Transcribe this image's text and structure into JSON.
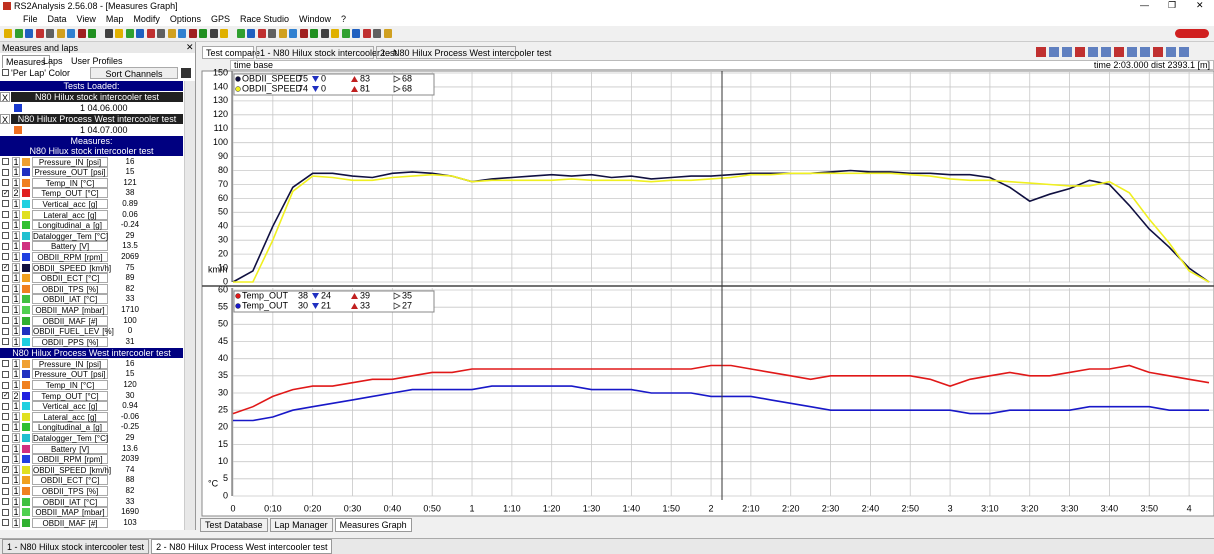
{
  "window": {
    "title": "RS2Analysis 2.56.08 - [Measures Graph]"
  },
  "menu": [
    "File",
    "Data",
    "View",
    "Map",
    "Modify",
    "Options",
    "GPS",
    "Race Studio",
    "Window",
    "?"
  ],
  "left_panel": {
    "title": "Measures and laps",
    "tabs": [
      "Measures",
      "Laps",
      "User Profiles"
    ],
    "per_lap_color": "'Per Lap' Color",
    "sort_button": "Sort Channels",
    "tests_loaded": "Tests Loaded:",
    "tests": [
      {
        "close": "X",
        "name": "N80 Hilux stock intercooler test",
        "color": "#1a3ad0",
        "lap": "1 04.06.000"
      },
      {
        "close": "X",
        "name": "N80 Hilux Process West intercooler test",
        "color": "#f07020",
        "lap": "1 04.07.000"
      }
    ],
    "measures_header": "Measures:",
    "groups": [
      {
        "name": "N80 Hilux stock intercooler test",
        "channels": [
          {
            "lap": 1,
            "checked": false,
            "color": "#f0a030",
            "name": "Pressure_IN",
            "unit": "[psi]",
            "value": 16
          },
          {
            "lap": 1,
            "checked": false,
            "color": "#2030c0",
            "name": "Pressure_OUT",
            "unit": "[psi]",
            "value": 15
          },
          {
            "lap": 1,
            "checked": false,
            "color": "#f08020",
            "name": "Temp_IN",
            "unit": "[°C]",
            "value": 121
          },
          {
            "lap": 2,
            "checked": true,
            "color": "#e02020",
            "name": "Temp_OUT",
            "unit": "[°C]",
            "value": 38
          },
          {
            "lap": 1,
            "checked": false,
            "color": "#20d0e0",
            "name": "Vertical_acc",
            "unit": "[g]",
            "value": 0.89
          },
          {
            "lap": 1,
            "checked": false,
            "color": "#e0e020",
            "name": "Lateral_acc",
            "unit": "[g]",
            "value": 0.06
          },
          {
            "lap": 1,
            "checked": false,
            "color": "#30c030",
            "name": "Longitudinal_a",
            "unit": "[g]",
            "value": -0.24
          },
          {
            "lap": 1,
            "checked": false,
            "color": "#20c0d0",
            "name": "Datalogger_Tem",
            "unit": "[°C]",
            "value": 29
          },
          {
            "lap": 1,
            "checked": false,
            "color": "#d03080",
            "name": "Battery",
            "unit": "[V]",
            "value": 13.5
          },
          {
            "lap": 1,
            "checked": false,
            "color": "#2040e0",
            "name": "OBDII_RPM",
            "unit": "[rpm]",
            "value": 2069
          },
          {
            "lap": 1,
            "checked": true,
            "color": "#101040",
            "name": "OBDII_SPEED",
            "unit": "[km/h]",
            "value": 75
          },
          {
            "lap": 1,
            "checked": false,
            "color": "#f0a020",
            "name": "OBDII_ECT",
            "unit": "[°C]",
            "value": 89
          },
          {
            "lap": 1,
            "checked": false,
            "color": "#f08020",
            "name": "OBDII_TPS",
            "unit": "[%]",
            "value": 82
          },
          {
            "lap": 1,
            "checked": false,
            "color": "#40c040",
            "name": "OBDII_IAT",
            "unit": "[°C]",
            "value": 33
          },
          {
            "lap": 1,
            "checked": false,
            "color": "#50d050",
            "name": "OBDII_MAP",
            "unit": "[mbar]",
            "value": 1710
          },
          {
            "lap": 1,
            "checked": false,
            "color": "#30b030",
            "name": "OBDII_MAF",
            "unit": "[#]",
            "value": 100
          },
          {
            "lap": 1,
            "checked": false,
            "color": "#2030c0",
            "name": "OBDII_FUEL_LEV",
            "unit": "[%]",
            "value": 0
          },
          {
            "lap": 1,
            "checked": false,
            "color": "#20d0e0",
            "name": "OBDII_PPS",
            "unit": "[%]",
            "value": 31
          }
        ]
      },
      {
        "name": "N80 Hilux Process West intercooler test",
        "channels": [
          {
            "lap": 1,
            "checked": false,
            "color": "#f0a030",
            "name": "Pressure_IN",
            "unit": "[psi]",
            "value": 16
          },
          {
            "lap": 1,
            "checked": false,
            "color": "#2030c0",
            "name": "Pressure_OUT",
            "unit": "[psi]",
            "value": 15
          },
          {
            "lap": 1,
            "checked": false,
            "color": "#f08020",
            "name": "Temp_IN",
            "unit": "[°C]",
            "value": 120
          },
          {
            "lap": 2,
            "checked": true,
            "color": "#2020e0",
            "name": "Temp_OUT",
            "unit": "[°C]",
            "value": 30
          },
          {
            "lap": 1,
            "checked": false,
            "color": "#20d0e0",
            "name": "Vertical_acc",
            "unit": "[g]",
            "value": 0.94
          },
          {
            "lap": 1,
            "checked": false,
            "color": "#e0e020",
            "name": "Lateral_acc",
            "unit": "[g]",
            "value": -0.06
          },
          {
            "lap": 1,
            "checked": false,
            "color": "#30c030",
            "name": "Longitudinal_a",
            "unit": "[g]",
            "value": -0.25
          },
          {
            "lap": 1,
            "checked": false,
            "color": "#20c0d0",
            "name": "Datalogger_Tem",
            "unit": "[°C]",
            "value": 29
          },
          {
            "lap": 1,
            "checked": false,
            "color": "#d03080",
            "name": "Battery",
            "unit": "[V]",
            "value": 13.6
          },
          {
            "lap": 1,
            "checked": false,
            "color": "#2040e0",
            "name": "OBDII_RPM",
            "unit": "[rpm]",
            "value": 2039
          },
          {
            "lap": 1,
            "checked": true,
            "color": "#e0e020",
            "name": "OBDII_SPEED",
            "unit": "[km/h]",
            "value": 74
          },
          {
            "lap": 1,
            "checked": false,
            "color": "#f0a020",
            "name": "OBDII_ECT",
            "unit": "[°C]",
            "value": 88
          },
          {
            "lap": 1,
            "checked": false,
            "color": "#f08020",
            "name": "OBDII_TPS",
            "unit": "[%]",
            "value": 82
          },
          {
            "lap": 1,
            "checked": false,
            "color": "#40c040",
            "name": "OBDII_IAT",
            "unit": "[°C]",
            "value": 33
          },
          {
            "lap": 1,
            "checked": false,
            "color": "#50d050",
            "name": "OBDII_MAP",
            "unit": "[mbar]",
            "value": 1690
          },
          {
            "lap": 1,
            "checked": false,
            "color": "#30b030",
            "name": "OBDII_MAF",
            "unit": "[#]",
            "value": 103
          }
        ]
      }
    ]
  },
  "doc_tabs": [
    "Test compare",
    "1 - N80 Hilux stock intercooler test",
    "2 - N80 Hilux Process West intercooler test"
  ],
  "time_base": "time base",
  "cursor_readout": "time 2:03.000   dist 2393.1 [m]",
  "chart_data": [
    {
      "type": "line",
      "y_label": "km/h",
      "grid": true,
      "x": [
        0,
        5,
        10,
        15,
        20,
        25,
        30,
        35,
        40,
        45,
        50,
        55,
        60,
        65,
        70,
        75,
        80,
        85,
        90,
        95,
        100,
        105,
        110,
        115,
        120,
        125,
        130,
        135,
        140,
        145,
        150,
        155,
        160,
        165,
        170,
        175,
        180,
        185,
        190,
        195,
        200,
        205,
        210,
        215,
        220,
        225,
        230,
        235,
        240,
        245
      ],
      "xlim": [
        0,
        246
      ],
      "xticks": [
        0,
        10,
        20,
        30,
        40,
        50,
        60,
        70,
        80,
        90,
        100,
        110,
        120,
        130,
        140,
        150,
        160,
        170,
        180,
        190,
        200,
        210,
        220,
        230,
        240
      ],
      "ylim": [
        0,
        150
      ],
      "yticks": [
        0,
        10,
        20,
        30,
        40,
        50,
        60,
        70,
        80,
        90,
        100,
        110,
        120,
        130,
        140,
        150
      ],
      "series": [
        {
          "name": "OBDII_SPEED",
          "color": "#101040",
          "current": 75,
          "min": 0,
          "max": 83,
          "avg": 68,
          "values": [
            0,
            8,
            40,
            68,
            78,
            78,
            76,
            75,
            78,
            79,
            78,
            76,
            72,
            74,
            75,
            76,
            77,
            76,
            77,
            75,
            76,
            74,
            75,
            76,
            76,
            77,
            78,
            78,
            78,
            78,
            79,
            80,
            79,
            79,
            78,
            78,
            77,
            77,
            75,
            68,
            58,
            63,
            67,
            73,
            70,
            55,
            38,
            25,
            10,
            0
          ]
        },
        {
          "name": "OBDII_SPEED",
          "color": "#f0f020",
          "current": 74,
          "min": 0,
          "max": 81,
          "avg": 68,
          "values": [
            0,
            0,
            30,
            65,
            76,
            75,
            73,
            73,
            75,
            76,
            77,
            76,
            72,
            73,
            73,
            73,
            73,
            74,
            73,
            73,
            73,
            72,
            73,
            73,
            74,
            75,
            77,
            77,
            78,
            78,
            78,
            78,
            78,
            78,
            77,
            76,
            74,
            73,
            73,
            72,
            71,
            70,
            69,
            69,
            72,
            64,
            45,
            28,
            8,
            0
          ]
        }
      ]
    },
    {
      "type": "line",
      "y_label": "°C",
      "grid": true,
      "x": [
        0,
        5,
        10,
        15,
        20,
        25,
        30,
        35,
        40,
        45,
        50,
        55,
        60,
        65,
        70,
        75,
        80,
        85,
        90,
        95,
        100,
        105,
        110,
        115,
        120,
        125,
        130,
        135,
        140,
        145,
        150,
        155,
        160,
        165,
        170,
        175,
        180,
        185,
        190,
        195,
        200,
        205,
        210,
        215,
        220,
        225,
        230,
        235,
        240,
        245
      ],
      "xlim": [
        0,
        246
      ],
      "xticks": [
        0,
        {
          "value": 10,
          "label": "0:10"
        },
        {
          "value": 20,
          "label": "0:20"
        },
        {
          "value": 30,
          "label": "0:30"
        },
        {
          "value": 40,
          "label": "0:40"
        },
        {
          "value": 50,
          "label": "0:50"
        },
        {
          "value": 60,
          "label": "1"
        },
        {
          "value": 70,
          "label": "1:10"
        },
        {
          "value": 80,
          "label": "1:20"
        },
        {
          "value": 90,
          "label": "1:30"
        },
        {
          "value": 100,
          "label": "1:40"
        },
        {
          "value": 110,
          "label": "1:50"
        },
        {
          "value": 120,
          "label": "2"
        },
        {
          "value": 130,
          "label": "2:10"
        },
        {
          "value": 140,
          "label": "2:20"
        },
        {
          "value": 150,
          "label": "2:30"
        },
        {
          "value": 160,
          "label": "2:40"
        },
        {
          "value": 170,
          "label": "2:50"
        },
        {
          "value": 180,
          "label": "3"
        },
        {
          "value": 190,
          "label": "3:10"
        },
        {
          "value": 200,
          "label": "3:20"
        },
        {
          "value": 210,
          "label": "3:30"
        },
        {
          "value": 220,
          "label": "3:40"
        },
        {
          "value": 230,
          "label": "3:50"
        },
        {
          "value": 240,
          "label": "4"
        }
      ],
      "ylim": [
        0,
        60
      ],
      "yticks": [
        0,
        5,
        10,
        15,
        20,
        25,
        30,
        35,
        40,
        45,
        50,
        55,
        60
      ],
      "series": [
        {
          "name": "Temp_OUT",
          "color": "#e01818",
          "current": 38,
          "min": 24,
          "max": 39,
          "avg": 35,
          "values": [
            24,
            26,
            29,
            31,
            32,
            32,
            33,
            34,
            34,
            35,
            36,
            36,
            37,
            37,
            37,
            37,
            37,
            37,
            37,
            37,
            37,
            37,
            37,
            37,
            38,
            38,
            37,
            36,
            35,
            34,
            35,
            35,
            35,
            35,
            35,
            34,
            32,
            34,
            35,
            36,
            35,
            35,
            36,
            37,
            37,
            38,
            36,
            35,
            34,
            33
          ]
        },
        {
          "name": "Temp_OUT",
          "color": "#1818c8",
          "current": 30,
          "min": 21,
          "max": 33,
          "avg": 27,
          "values": [
            22,
            22,
            23,
            25,
            26,
            27,
            28,
            29,
            30,
            31,
            31,
            31,
            31,
            32,
            32,
            32,
            32,
            32,
            31,
            31,
            31,
            30,
            30,
            30,
            29,
            29,
            29,
            28,
            27,
            26,
            25,
            25,
            25,
            25,
            25,
            25,
            25,
            24,
            24,
            25,
            25,
            25,
            25,
            26,
            26,
            26,
            26,
            25,
            25,
            25
          ]
        }
      ]
    }
  ],
  "bottom_tabs": [
    "Test Database",
    "Lap Manager",
    "Measures Graph"
  ],
  "status_tabs": [
    "1 - N80 Hilux stock intercooler test",
    "2 - N80 Hilux Process West intercooler test"
  ]
}
